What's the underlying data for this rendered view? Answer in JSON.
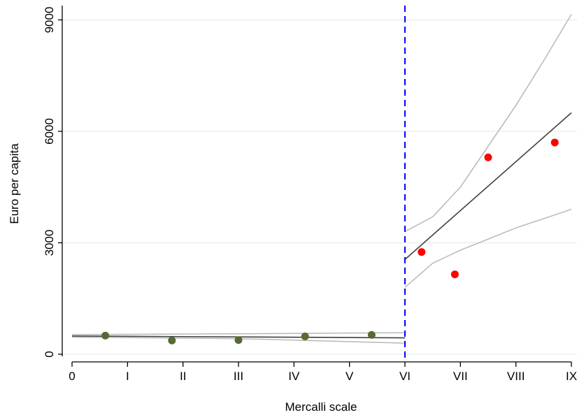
{
  "chart_data": {
    "type": "scatter",
    "xlabel": "Mercalli scale",
    "ylabel": "Euro per capita",
    "x_ticks": [
      {
        "value": 0,
        "label": "0"
      },
      {
        "value": 1,
        "label": "I"
      },
      {
        "value": 2,
        "label": "II"
      },
      {
        "value": 3,
        "label": "III"
      },
      {
        "value": 4,
        "label": "IV"
      },
      {
        "value": 5,
        "label": "V"
      },
      {
        "value": 6,
        "label": "VI"
      },
      {
        "value": 7,
        "label": "VII"
      },
      {
        "value": 8,
        "label": "VIII"
      },
      {
        "value": 9,
        "label": "IX"
      }
    ],
    "y_ticks": [
      0,
      3000,
      6000,
      9000
    ],
    "xlim": [
      0,
      9
    ],
    "ylim": [
      -150,
      9300
    ],
    "grid": "horizontal",
    "cutoff": {
      "x": 6,
      "color": "#0000ff",
      "style": "dashed"
    },
    "series": [
      {
        "color": "#556b2f",
        "points": [
          {
            "x": 0.6,
            "y": 500
          },
          {
            "x": 1.8,
            "y": 370
          },
          {
            "x": 3.0,
            "y": 380
          },
          {
            "x": 4.2,
            "y": 480
          },
          {
            "x": 5.4,
            "y": 520
          }
        ]
      },
      {
        "color": "#ff0000",
        "points": [
          {
            "x": 6.3,
            "y": 2750
          },
          {
            "x": 6.9,
            "y": 2150
          },
          {
            "x": 7.5,
            "y": 5300
          },
          {
            "x": 8.7,
            "y": 5700
          }
        ]
      }
    ],
    "fits": [
      {
        "segment": "left",
        "color": "#404040",
        "line": [
          [
            0,
            490
          ],
          [
            6,
            440
          ]
        ],
        "ci_upper": [
          [
            0,
            530
          ],
          [
            3,
            550
          ],
          [
            6,
            580
          ]
        ],
        "ci_lower": [
          [
            0,
            460
          ],
          [
            3,
            420
          ],
          [
            6,
            300
          ]
        ]
      },
      {
        "segment": "right",
        "color": "#404040",
        "line": [
          [
            6,
            2550
          ],
          [
            9,
            6500
          ]
        ],
        "ci_upper": [
          [
            6,
            3300
          ],
          [
            6.5,
            3700
          ],
          [
            7,
            4500
          ],
          [
            7.5,
            5600
          ],
          [
            8,
            6700
          ],
          [
            8.5,
            7900
          ],
          [
            9,
            9150
          ]
        ],
        "ci_lower": [
          [
            6,
            1800
          ],
          [
            6.5,
            2450
          ],
          [
            7,
            2800
          ],
          [
            7.5,
            3100
          ],
          [
            8,
            3400
          ],
          [
            8.5,
            3650
          ],
          [
            9,
            3900
          ]
        ]
      }
    ]
  }
}
